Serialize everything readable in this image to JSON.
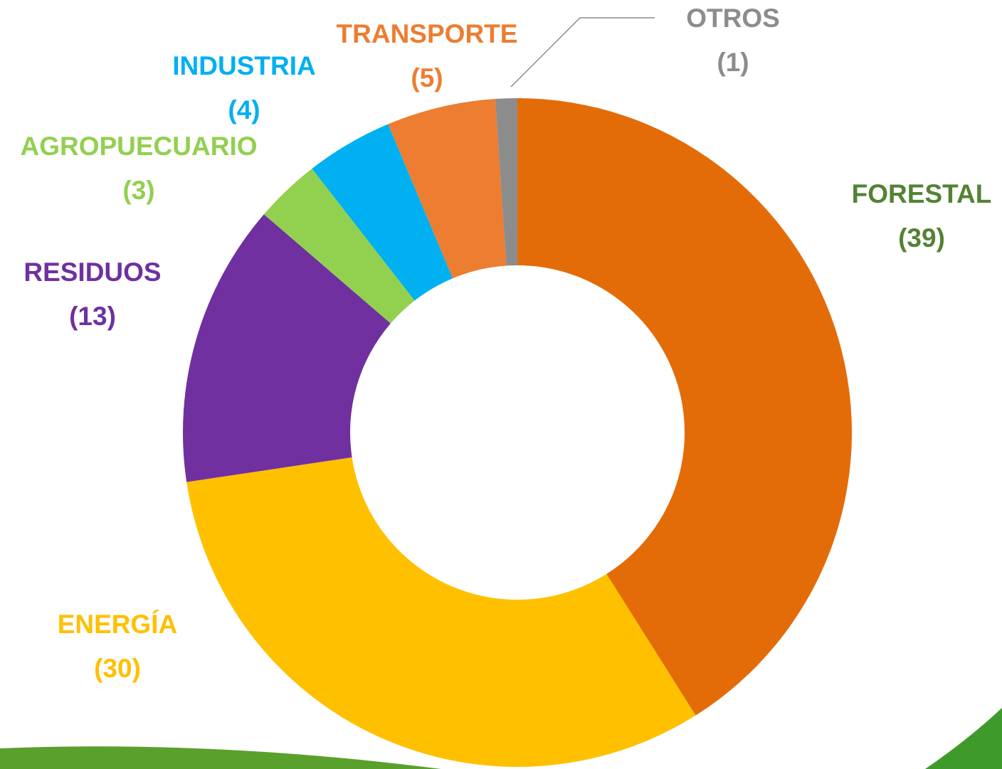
{
  "chart_data": {
    "type": "pie",
    "categories": [
      "FORESTAL",
      "ENERGÍA",
      "RESIDUOS",
      "AGROPUECUARIO",
      "INDUSTRIA",
      "TRANSPORTE",
      "OTROS"
    ],
    "values": [
      39,
      30,
      13,
      3,
      4,
      5,
      1
    ],
    "value_labels": [
      "(39)",
      "(30)",
      "(13)",
      "(3)",
      "(4)",
      "(5)",
      "(1)"
    ],
    "colors": [
      "#e36c09",
      "#ffc000",
      "#7030a0",
      "#92d050",
      "#00b0f0",
      "#ed7d31",
      "#8c8c8c"
    ],
    "label_colors": [
      "#548235",
      "#ffc000",
      "#7030a0",
      "#92d050",
      "#00b0f0",
      "#ed7d31",
      "#8c8c8c"
    ],
    "donut": true
  }
}
